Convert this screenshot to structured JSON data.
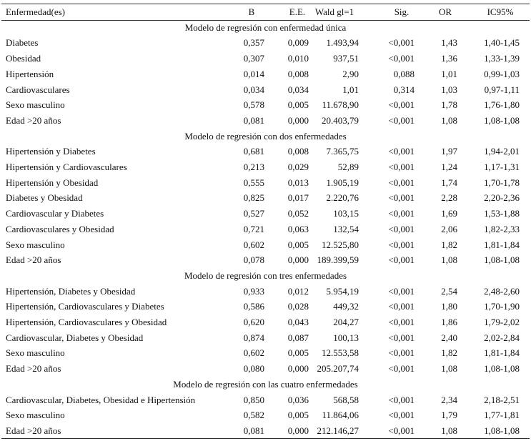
{
  "table": {
    "header": [
      "Enfermedad(es)",
      "B",
      "E.E.",
      "Wald gl=1",
      "Sig.",
      "OR",
      "IC95%"
    ],
    "sections": [
      {
        "title": "Modelo de regresión con enfermedad única",
        "rows": [
          [
            "Diabetes",
            "0,357",
            "0,009",
            "1.493,94",
            "<0,001",
            "1,43",
            "1,40-1,45"
          ],
          [
            "Obesidad",
            "0,307",
            "0,010",
            "937,51",
            "<0,001",
            "1,36",
            "1,33-1,39"
          ],
          [
            "Hipertensión",
            "0,014",
            "0,008",
            "2,90",
            "0,088",
            "1,01",
            "0,99-1,03"
          ],
          [
            "Cardiovasculares",
            "0,034",
            "0,034",
            "1,01",
            "0,314",
            "1,03",
            "0,97-1,11"
          ],
          [
            "Sexo masculino",
            "0,578",
            "0,005",
            "11.678,90",
            "<0,001",
            "1,78",
            "1,76-1,80"
          ],
          [
            "Edad >20 años",
            "0,081",
            "0,000",
            "20.403,79",
            "<0,001",
            "1,08",
            "1,08-1,08"
          ]
        ]
      },
      {
        "title": "Modelo de regresión con dos enfermedades",
        "rows": [
          [
            "Hipertensión y Diabetes",
            "0,681",
            "0,008",
            "7.365,75",
            "<0,001",
            "1,97",
            "1,94-2,01"
          ],
          [
            "Hipertensión y Cardiovasculares",
            "0,213",
            "0,029",
            "52,89",
            "<0,001",
            "1,24",
            "1,17-1,31"
          ],
          [
            "Hipertensión y Obesidad",
            "0,555",
            "0,013",
            "1.905,19",
            "<0,001",
            "1,74",
            "1,70-1,78"
          ],
          [
            "Diabetes y Obesidad",
            "0,825",
            "0,017",
            "2.220,76",
            "<0,001",
            "2,28",
            "2,20-2,36"
          ],
          [
            "Cardiovascular y Diabetes",
            "0,527",
            "0,052",
            "103,15",
            "<0,001",
            "1,69",
            "1,53-1,88"
          ],
          [
            "Cardiovasculares y Obesidad",
            "0,721",
            "0,063",
            "132,54",
            "<0,001",
            "2,06",
            "1,82-2,33"
          ],
          [
            "Sexo masculino",
            "0,602",
            "0,005",
            "12.525,80",
            "<0,001",
            "1,82",
            "1,81-1,84"
          ],
          [
            "Edad >20 años",
            "0,078",
            "0,000",
            "189.399,59",
            "<0,001",
            "1,08",
            "1,08-1,08"
          ]
        ]
      },
      {
        "title": "Modelo de regresión con tres enfermedades",
        "rows": [
          [
            "Hipertensión, Diabetes y Obesidad",
            "0,933",
            "0,012",
            "5.954,19",
            "<0,001",
            "2,54",
            "2,48-2,60"
          ],
          [
            "Hipertensión, Cardiovasculares y Diabetes",
            "0,586",
            "0,028",
            "449,32",
            "<0,001",
            "1,80",
            "1,70-1,90"
          ],
          [
            "Hipertensión, Cardiovasculares y Obesidad",
            "0,620",
            "0,043",
            "204,27",
            "<0,001",
            "1,86",
            "1,79-2,02"
          ],
          [
            "Cardiovascular, Diabetes y Obesidad",
            "0,874",
            "0,087",
            "100,13",
            "<0,001",
            "2,40",
            "2,02-2,84"
          ],
          [
            "Sexo masculino",
            "0,602",
            "0,005",
            "12.553,58",
            "<0,001",
            "1,82",
            "1,81-1,84"
          ],
          [
            "Edad >20 años",
            "0,080",
            "0,000",
            "205.207,74",
            "<0,001",
            "1,08",
            "1,08-1,08"
          ]
        ]
      },
      {
        "title": "Modelo de regresión con las cuatro enfermedades",
        "rows": [
          [
            "Cardiovascular, Diabetes, Obesidad e Hipertensión",
            "0,850",
            "0,036",
            "568,58",
            "<0,001",
            "2,34",
            "2,18-2,51"
          ],
          [
            "Sexo masculino",
            "0,582",
            "0,005",
            "11.864,06",
            "<0,001",
            "1,79",
            "1,77-1,81"
          ],
          [
            "Edad >20 años",
            "0,081",
            "0,000",
            "212.146,27",
            "<0,001",
            "1,08",
            "1,08-1,08"
          ]
        ]
      }
    ]
  }
}
